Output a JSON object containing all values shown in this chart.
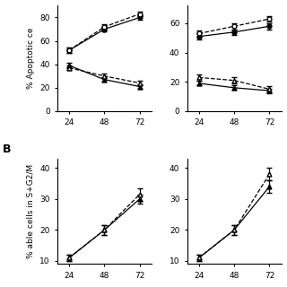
{
  "x": [
    24,
    48,
    72
  ],
  "panel_A_left": {
    "circle_solid": {
      "y": [
        52,
        70,
        80
      ],
      "yerr": [
        2,
        2,
        2
      ]
    },
    "circle_open": {
      "y": [
        52,
        72,
        83
      ],
      "yerr": [
        2,
        2,
        2
      ]
    },
    "triangle_solid": {
      "y": [
        39,
        27,
        21
      ],
      "yerr": [
        2,
        2,
        2
      ]
    },
    "triangle_open": {
      "y": [
        37,
        30,
        24
      ],
      "yerr": [
        2,
        2,
        2
      ]
    },
    "ylabel": "% Apoptotic ce",
    "ylim": [
      0,
      90
    ],
    "yticks": [
      0,
      20,
      40,
      60,
      80
    ]
  },
  "panel_A_right": {
    "circle_solid": {
      "y": [
        51,
        54,
        58
      ],
      "yerr": [
        2,
        2,
        2
      ]
    },
    "circle_open": {
      "y": [
        53,
        58,
        63
      ],
      "yerr": [
        2,
        2,
        2
      ]
    },
    "triangle_solid": {
      "y": [
        19,
        16,
        14
      ],
      "yerr": [
        1.5,
        1.5,
        1.5
      ]
    },
    "triangle_open": {
      "y": [
        23,
        21,
        15
      ],
      "yerr": [
        2,
        2,
        2
      ]
    },
    "ylim": [
      0,
      72
    ],
    "yticks": [
      0,
      20,
      40,
      60
    ]
  },
  "panel_B_left": {
    "triangle_solid": {
      "y": [
        11,
        20,
        30
      ],
      "yerr": [
        1,
        1.5,
        1.5
      ]
    },
    "triangle_open": {
      "y": [
        11,
        20,
        31.5
      ],
      "yerr": [
        1,
        1.5,
        2
      ]
    },
    "ylabel": "% able cells in S+G2/M",
    "ylim": [
      9,
      43
    ],
    "yticks": [
      10,
      20,
      30,
      40
    ]
  },
  "panel_B_right": {
    "triangle_solid": {
      "y": [
        11,
        20,
        34
      ],
      "yerr": [
        1,
        1.5,
        2
      ]
    },
    "triangle_open": {
      "y": [
        11,
        20,
        38
      ],
      "yerr": [
        1,
        1.5,
        2
      ]
    },
    "ylim": [
      9,
      43
    ],
    "yticks": [
      10,
      20,
      30,
      40
    ]
  },
  "background_color": "#ffffff",
  "line_color": "#000000",
  "label_fontsize": 6.5,
  "tick_fontsize": 6.5
}
